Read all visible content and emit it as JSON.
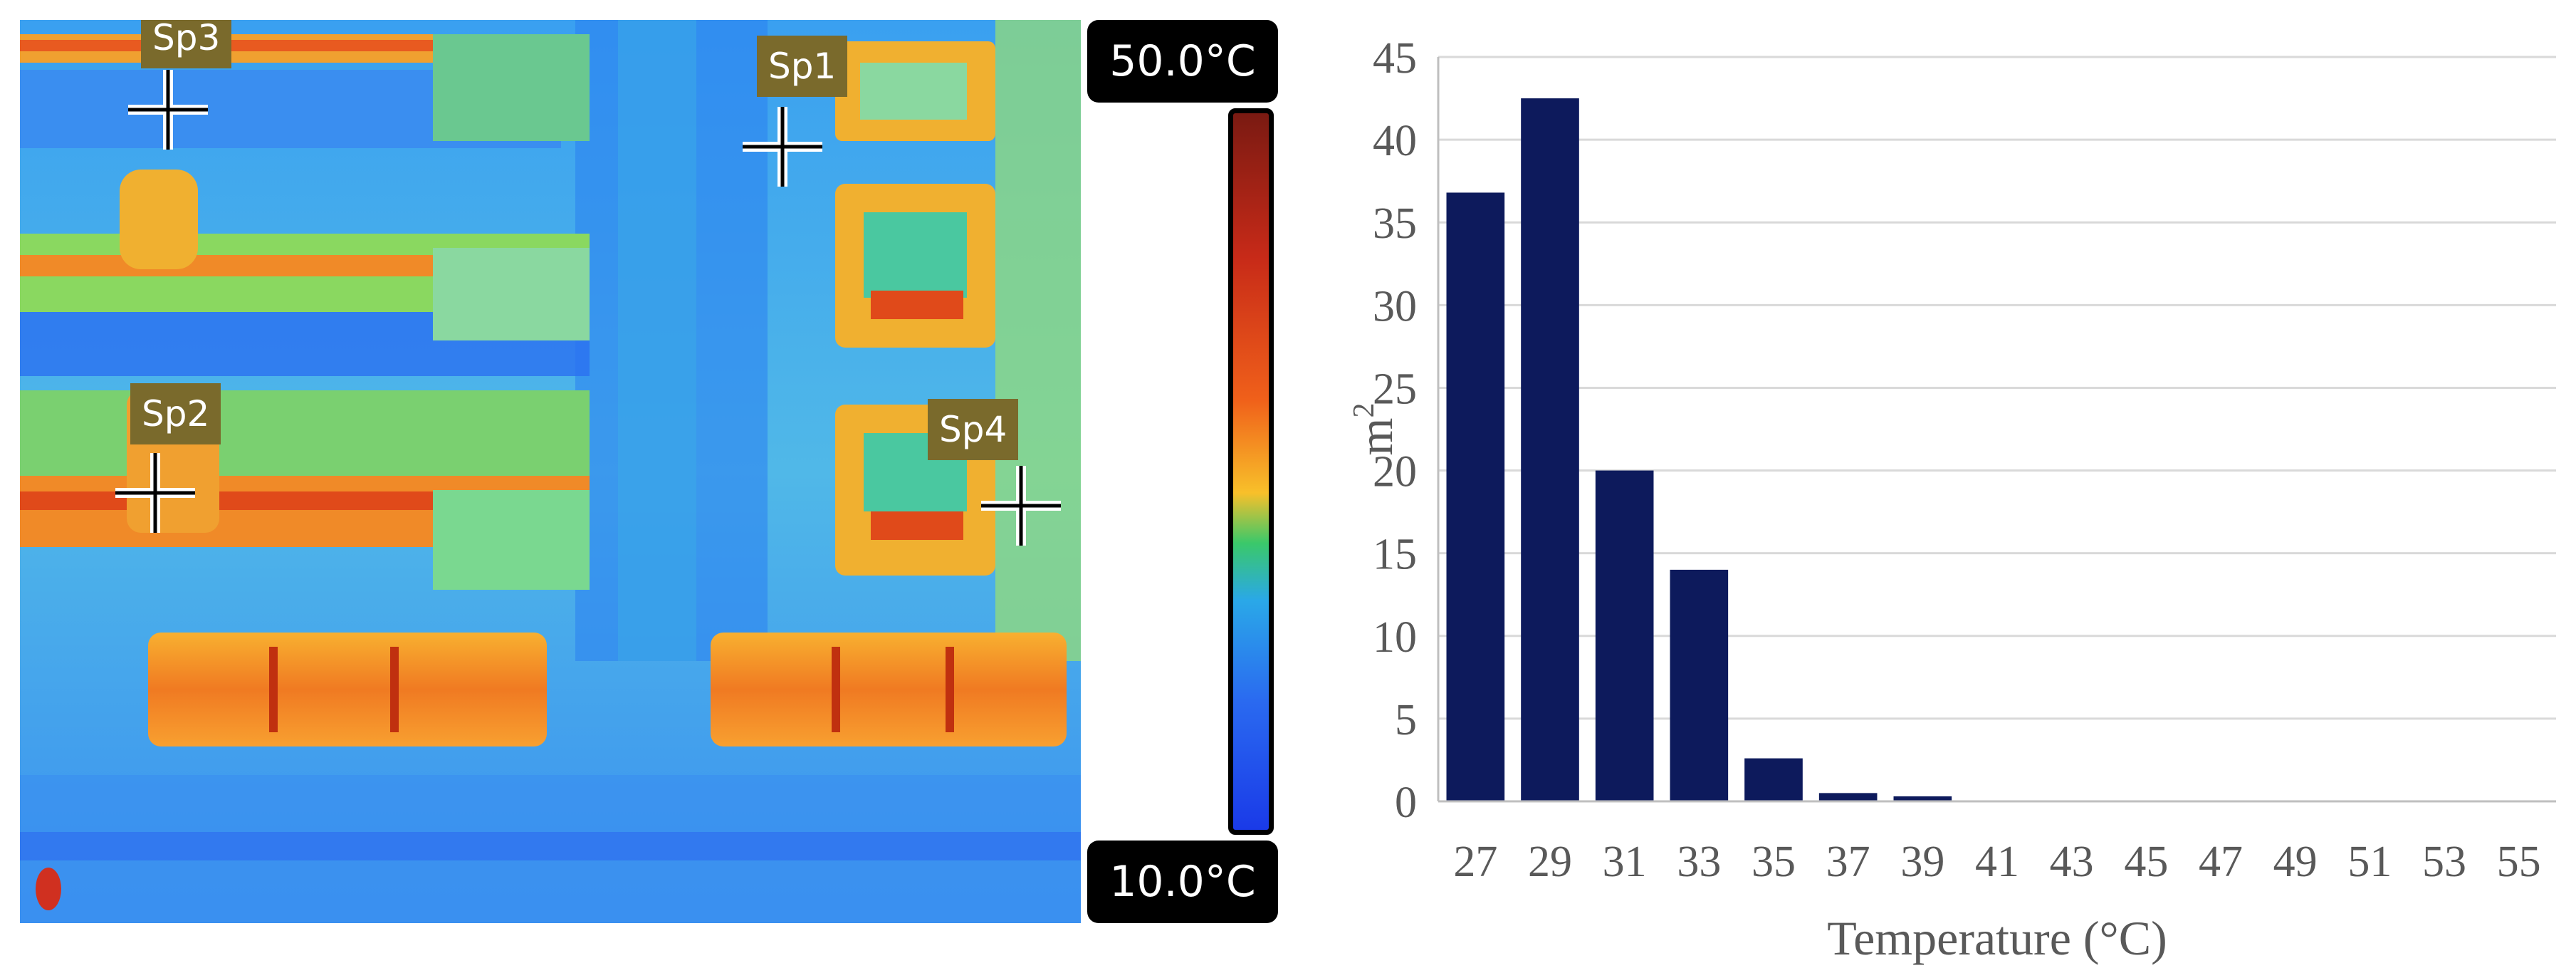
{
  "thermal_image": {
    "scale_max": "50.0°C",
    "scale_min": "10.0°C",
    "spots": [
      {
        "label": "Sp1"
      },
      {
        "label": "Sp2"
      },
      {
        "label": "Sp3"
      },
      {
        "label": "Sp4"
      }
    ]
  },
  "chart_data": {
    "type": "bar",
    "title": "",
    "xlabel": "Temperature (°C)",
    "ylabel_base": "m",
    "ylabel_sup": "2",
    "categories": [
      "27",
      "29",
      "31",
      "33",
      "35",
      "37",
      "39",
      "41",
      "43",
      "45",
      "47",
      "49",
      "51",
      "53",
      "55"
    ],
    "values": [
      36.8,
      42.5,
      20.0,
      14.0,
      2.6,
      0.5,
      0.3,
      0,
      0,
      0,
      0,
      0,
      0,
      0,
      0
    ],
    "ylim": [
      0,
      45
    ],
    "yticks": [
      "0",
      "5",
      "10",
      "15",
      "20",
      "25",
      "30",
      "35",
      "40",
      "45"
    ],
    "grid": true,
    "bar_color": "#0d1a5c"
  }
}
